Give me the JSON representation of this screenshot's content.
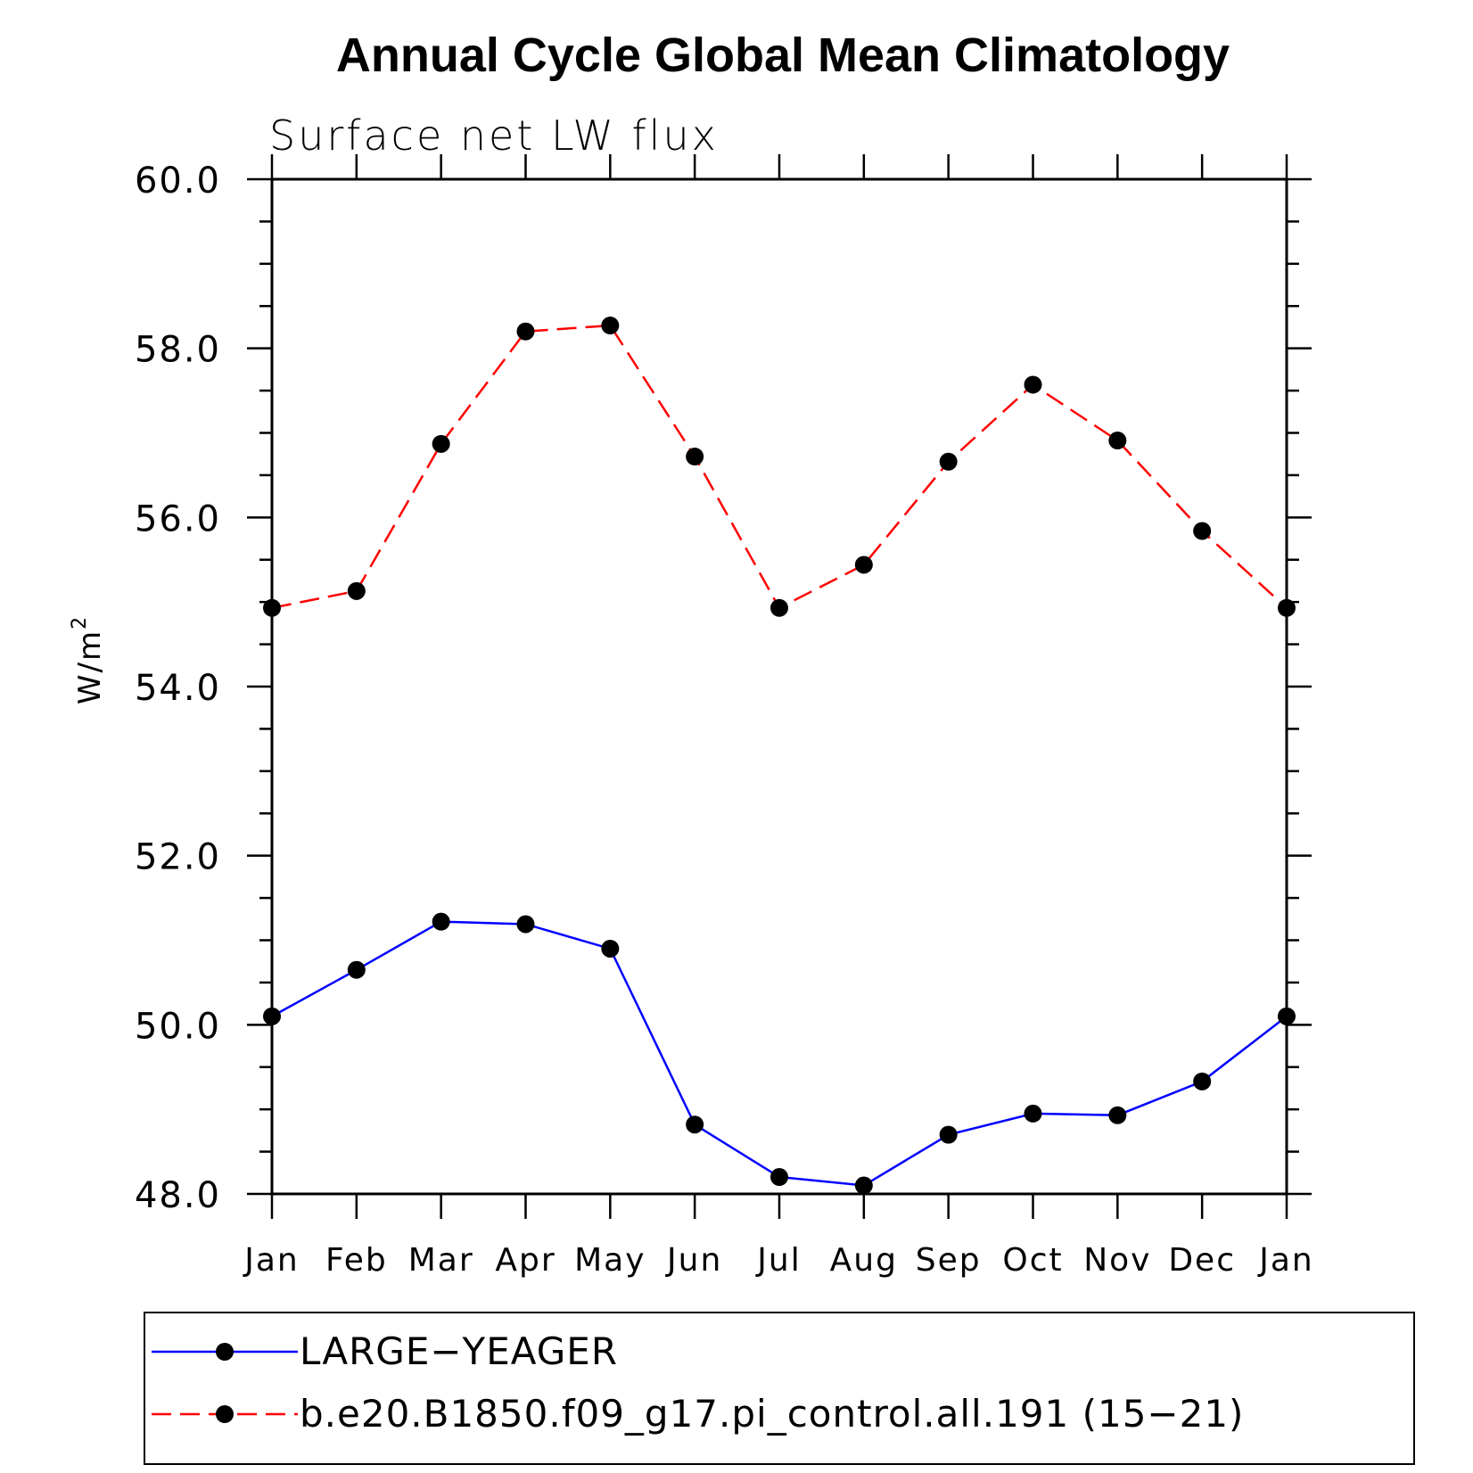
{
  "chart_data": {
    "type": "line",
    "title": "Annual Cycle Global Mean Climatology",
    "subtitle": "Surface net LW flux",
    "xlabel": "",
    "ylabel": "W/m",
    "ylabel_superscript": "2",
    "ylim": [
      48.0,
      60.0
    ],
    "yticks": [
      "48.0",
      "50.0",
      "52.0",
      "54.0",
      "56.0",
      "58.0",
      "60.0"
    ],
    "yticks_values": [
      48,
      50,
      52,
      54,
      56,
      58,
      60
    ],
    "categories": [
      "Jan",
      "Feb",
      "Mar",
      "Apr",
      "May",
      "Jun",
      "Jul",
      "Aug",
      "Sep",
      "Oct",
      "Nov",
      "Dec",
      "Jan"
    ],
    "series": [
      {
        "name": "LARGE−YEAGER",
        "color": "#0000ff",
        "dash": "solid",
        "values": [
          50.1,
          50.65,
          51.22,
          51.19,
          50.9,
          48.82,
          48.2,
          48.1,
          48.7,
          48.95,
          48.93,
          49.33,
          50.1
        ]
      },
      {
        "name": "b.e20.B1850.f09_g17.pi_control.all.191 (15−21)",
        "color": "#ff0000",
        "dash": "dashed",
        "values": [
          54.93,
          55.13,
          56.87,
          58.2,
          58.27,
          56.72,
          54.93,
          55.44,
          56.66,
          57.57,
          56.91,
          55.84,
          54.93
        ]
      }
    ],
    "marker_color": "#000000",
    "legend_position": "bottom"
  }
}
